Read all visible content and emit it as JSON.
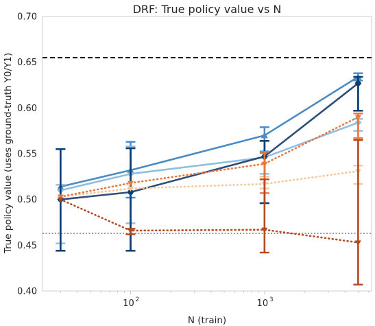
{
  "chart_data": {
    "type": "line",
    "title": "DRF: True policy value vs N",
    "xlabel": "N (train)",
    "ylabel": "True policy value (uses ground-truth Y0/Y1)",
    "xscale": "log",
    "xlim": [
      22,
      6300
    ],
    "ylim": [
      0.4,
      0.7
    ],
    "x_ticks": [
      {
        "value": 100,
        "base": "10",
        "exp": "2"
      },
      {
        "value": 1000,
        "base": "10",
        "exp": "3"
      }
    ],
    "y_ticks": [
      "0.40",
      "0.45",
      "0.50",
      "0.55",
      "0.60",
      "0.65",
      "0.70"
    ],
    "grid": false,
    "hlines": [
      {
        "y": 0.655,
        "style": "dashed",
        "color": "#000000"
      },
      {
        "y": 0.463,
        "style": "dotted",
        "color": "#777777"
      }
    ],
    "x": [
      30,
      100,
      1000,
      5000
    ],
    "series": [
      {
        "color": "#4a8bc4",
        "linestyle": "solid",
        "marker": "triangle",
        "values": [
          0.514,
          0.532,
          0.57,
          0.634
        ],
        "yerr_lo": [
          0.514,
          0.502,
          0.551,
          0.63
        ],
        "yerr_hi": [
          0.514,
          0.563,
          0.579,
          0.638
        ]
      },
      {
        "color": "#8fbfe0",
        "linestyle": "solid",
        "marker": "diamond",
        "values": [
          0.51,
          0.528,
          0.546,
          0.584
        ],
        "yerr_lo": [
          0.452,
          0.474,
          0.528,
          0.575
        ],
        "yerr_hi": [
          0.516,
          0.558,
          0.553,
          0.588
        ]
      },
      {
        "color": "#2d4e7a",
        "linestyle": "solid",
        "marker": "diamond",
        "values": [
          0.5,
          0.508,
          0.547,
          0.627
        ],
        "yerr_lo": [
          0.444,
          0.444,
          0.496,
          0.597
        ],
        "yerr_hi": [
          0.555,
          0.556,
          0.564,
          0.634
        ]
      },
      {
        "color": "#0d3f73",
        "linestyle": "none",
        "marker": "circle",
        "values": [
          0.5,
          0.508,
          0.547,
          0.627
        ],
        "yerr_lo": [
          0.444,
          0.444,
          0.496,
          0.597
        ],
        "yerr_hi": [
          0.555,
          0.556,
          0.564,
          0.634
        ]
      },
      {
        "color": "#f5c89a",
        "linestyle": "dotted",
        "marker": "triangle-down",
        "values": [
          0.503,
          0.512,
          0.517,
          0.531
        ],
        "yerr_lo": [
          0.503,
          0.512,
          0.512,
          0.517
        ],
        "yerr_hi": [
          0.503,
          0.512,
          0.525,
          0.537
        ]
      },
      {
        "color": "#e8773b",
        "linestyle": "dotted",
        "marker": "triangle-down",
        "values": [
          0.503,
          0.518,
          0.539,
          0.59
        ],
        "yerr_lo": [
          0.503,
          0.518,
          0.507,
          0.567
        ],
        "yerr_hi": [
          0.503,
          0.518,
          0.552,
          0.594
        ]
      },
      {
        "color": "#b24a22",
        "linestyle": "dotted",
        "marker": "triangle-down",
        "values": [
          0.5,
          0.466,
          0.467,
          0.453
        ],
        "yerr_lo": [
          0.5,
          0.462,
          0.442,
          0.407
        ],
        "yerr_hi": [
          0.5,
          0.468,
          0.522,
          0.565
        ]
      }
    ]
  }
}
